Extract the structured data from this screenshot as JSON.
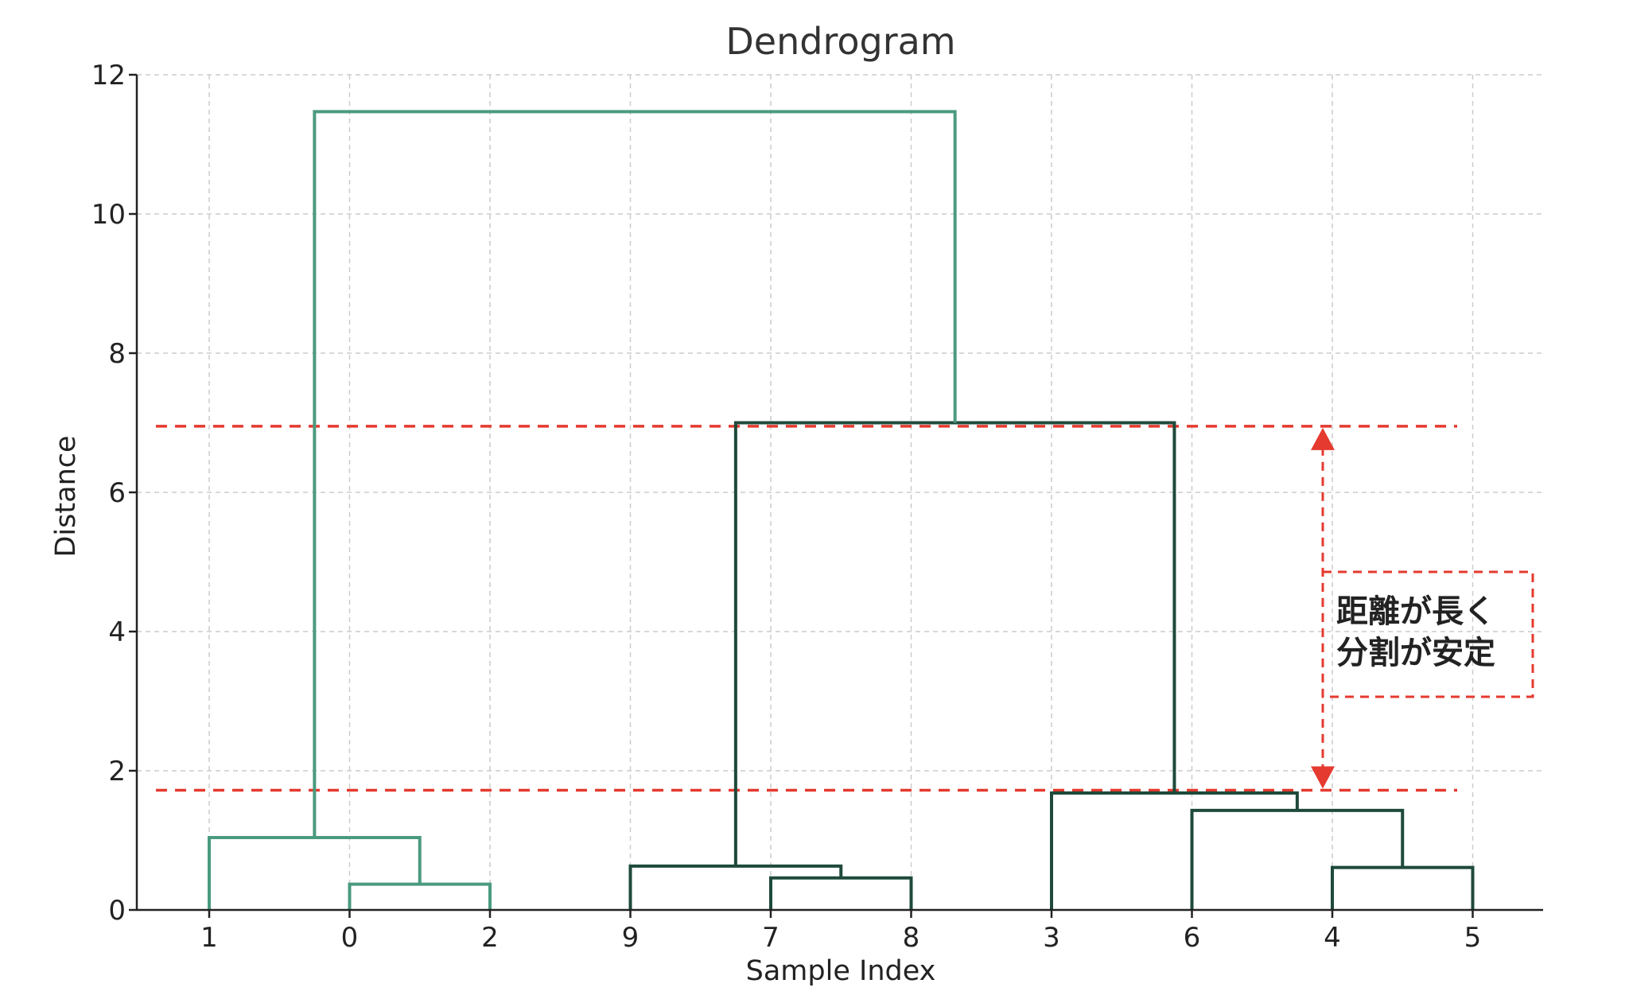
{
  "chart_data": {
    "type": "dendrogram",
    "title": "Dendrogram",
    "xlabel": "Sample Index",
    "ylabel": "Distance",
    "ylim": [
      0,
      12
    ],
    "yticks": [
      0,
      2,
      4,
      6,
      8,
      10,
      12
    ],
    "grid": true,
    "leaf_order": [
      "1",
      "0",
      "2",
      "9",
      "7",
      "8",
      "3",
      "6",
      "4",
      "5"
    ],
    "merges": [
      {
        "id": "a",
        "left": "0",
        "right": "2",
        "height": 0.37,
        "cluster": "left"
      },
      {
        "id": "b",
        "left": "1",
        "right": "a",
        "height": 1.04,
        "cluster": "left"
      },
      {
        "id": "c",
        "left": "7",
        "right": "8",
        "height": 0.46,
        "cluster": "right"
      },
      {
        "id": "d",
        "left": "9",
        "right": "c",
        "height": 0.63,
        "cluster": "right"
      },
      {
        "id": "e",
        "left": "4",
        "right": "5",
        "height": 0.61,
        "cluster": "right"
      },
      {
        "id": "f",
        "left": "6",
        "right": "e",
        "height": 1.43,
        "cluster": "right"
      },
      {
        "id": "g",
        "left": "3",
        "right": "f",
        "height": 1.68,
        "cluster": "right"
      },
      {
        "id": "h",
        "left": "d",
        "right": "g",
        "height": 7.0,
        "cluster": "right"
      },
      {
        "id": "i",
        "left": "b",
        "right": "h",
        "height": 11.47,
        "cluster": "root"
      }
    ],
    "cut_lines": [
      6.95,
      1.72
    ],
    "annotation": {
      "line1": "距離が長く",
      "line2": "分割が安定"
    },
    "colors": {
      "left_cluster": "#4a9a80",
      "root": "#4a9a80",
      "right_cluster": "#1e4a3a",
      "cut": "#e53a2f",
      "grid": "#cccccc",
      "axis": "#222222",
      "text": "#222222"
    }
  }
}
